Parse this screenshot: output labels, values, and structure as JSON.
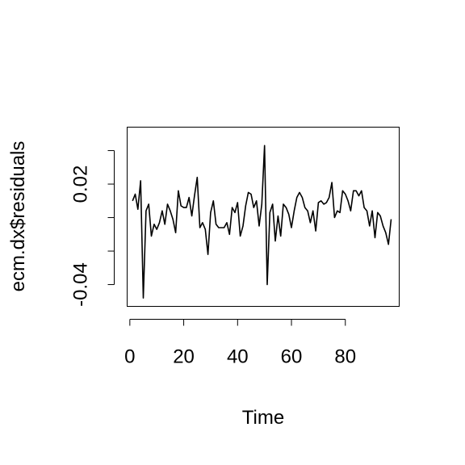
{
  "chart_data": {
    "type": "line",
    "title": "",
    "xlabel": "Time",
    "ylabel": "ecm.dx$residuals",
    "xlim": [
      -1,
      100
    ],
    "ylim": [
      -0.053,
      0.054
    ],
    "xticks": [
      0,
      20,
      40,
      60,
      80
    ],
    "xtick_labels": [
      "0",
      "20",
      "40",
      "60",
      "80"
    ],
    "yticks": [
      -0.04,
      0.02
    ],
    "ytick_labels": [
      "-0.04",
      "0.02"
    ],
    "yticks_unlabeled": [
      -0.02,
      0.0,
      0.04
    ],
    "grid": false,
    "legend": "none",
    "series": [
      {
        "color": "#000000",
        "x": [
          1,
          2,
          3,
          4,
          5,
          6,
          7,
          8,
          9,
          10,
          11,
          12,
          13,
          14,
          15,
          16,
          17,
          18,
          19,
          20,
          21,
          22,
          23,
          24,
          25,
          26,
          27,
          28,
          29,
          30,
          31,
          32,
          33,
          34,
          35,
          36,
          37,
          38,
          39,
          40,
          41,
          42,
          43,
          44,
          45,
          46,
          47,
          48,
          49,
          50,
          51,
          52,
          53,
          54,
          55,
          56,
          57,
          58,
          59,
          60,
          61,
          62,
          63,
          64,
          65,
          66,
          67,
          68,
          69,
          70,
          71,
          72,
          73,
          74,
          75,
          76,
          77,
          78,
          79,
          80,
          81,
          82,
          83,
          84,
          85,
          86,
          87,
          88,
          89,
          90,
          91,
          92,
          93,
          94,
          95,
          96,
          97
        ],
        "y": [
          0.01,
          0.014,
          0.005,
          0.022,
          -0.048,
          0.004,
          0.008,
          -0.011,
          -0.004,
          -0.007,
          -0.003,
          0.004,
          -0.004,
          0.008,
          0.004,
          -0.001,
          -0.009,
          0.016,
          0.007,
          0.006,
          0.006,
          0.012,
          0.001,
          0.013,
          0.024,
          -0.006,
          -0.003,
          -0.007,
          -0.022,
          0.003,
          0.01,
          -0.004,
          -0.006,
          -0.006,
          -0.006,
          -0.003,
          -0.01,
          0.006,
          0.003,
          0.009,
          -0.011,
          -0.005,
          0.007,
          0.015,
          0.014,
          0.006,
          0.01,
          -0.005,
          0.008,
          0.043,
          -0.04,
          0.003,
          0.008,
          -0.014,
          0.001,
          -0.011,
          0.008,
          0.006,
          0.002,
          -0.006,
          0.004,
          0.012,
          0.015,
          0.012,
          0.006,
          0.004,
          -0.003,
          0.004,
          -0.008,
          0.009,
          0.01,
          0.008,
          0.009,
          0.012,
          0.021,
          0.0,
          0.004,
          0.003,
          0.016,
          0.014,
          0.01,
          0.004,
          0.016,
          0.016,
          0.013,
          0.016,
          0.006,
          0.004,
          -0.005,
          0.004,
          -0.012,
          0.003,
          0.001,
          -0.005,
          -0.009,
          -0.016,
          -0.001
        ]
      }
    ]
  }
}
